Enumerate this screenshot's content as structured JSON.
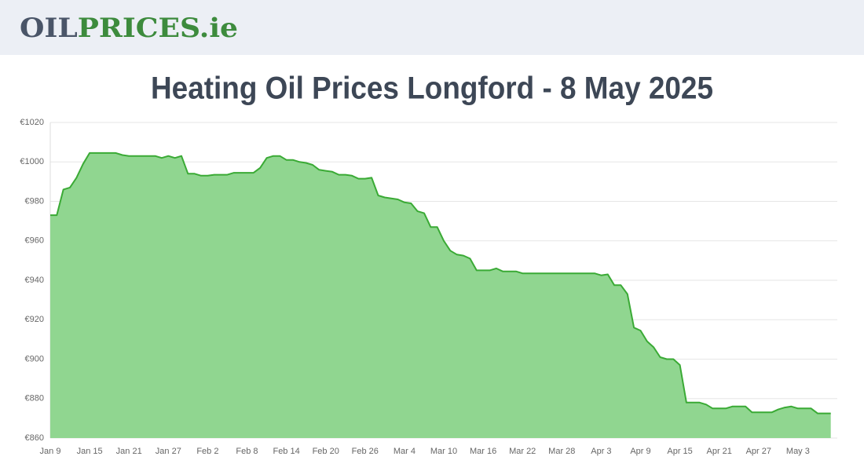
{
  "header": {
    "logo": {
      "main": "OIL",
      "highlight": "PRICES",
      "suffix": ".ie"
    }
  },
  "chart_data": {
    "type": "area",
    "title": "Heating Oil Prices Longford - 8 May 2025",
    "color": "#3aaa35",
    "fill": "#90d690",
    "grid": true,
    "categories": [
      "Jan 9",
      null,
      null,
      null,
      null,
      null,
      "Jan 15",
      null,
      null,
      null,
      null,
      null,
      "Jan 21",
      null,
      null,
      null,
      null,
      null,
      "Jan 27",
      null,
      null,
      null,
      null,
      null,
      "Feb 2",
      null,
      null,
      null,
      null,
      null,
      "Feb 8",
      null,
      null,
      null,
      null,
      null,
      "Feb 14",
      null,
      null,
      null,
      null,
      null,
      "Feb 20",
      null,
      null,
      null,
      null,
      null,
      "Feb 26",
      null,
      null,
      null,
      null,
      null,
      "Mar 4",
      null,
      null,
      null,
      null,
      null,
      "Mar 10",
      null,
      null,
      null,
      null,
      null,
      "Mar 16",
      null,
      null,
      null,
      null,
      null,
      "Mar 22",
      null,
      null,
      null,
      null,
      null,
      "Mar 28",
      null,
      null,
      null,
      null,
      null,
      "Apr 3",
      null,
      null,
      null,
      null,
      null,
      "Apr 9",
      null,
      null,
      null,
      null,
      null,
      "Apr 15",
      null,
      null,
      null,
      null,
      null,
      "Apr 21",
      null,
      null,
      null,
      null,
      null,
      "Apr 27",
      null,
      null,
      null,
      null,
      null,
      "May 3",
      null,
      null,
      null,
      null,
      null
    ],
    "values": [
      973,
      973,
      986,
      987,
      992,
      999,
      1004.5,
      1004.5,
      1004.5,
      1004.5,
      1004.5,
      1003.5,
      1003,
      1003,
      1003,
      1003,
      1003,
      1002,
      1003,
      1002,
      1003,
      994,
      994,
      993,
      993,
      993.5,
      993.5,
      993.5,
      994.5,
      994.5,
      994.5,
      994.5,
      997,
      1002,
      1003,
      1003,
      1001,
      1001,
      1000,
      999.5,
      998.5,
      996,
      995.5,
      995,
      993.5,
      993.5,
      993,
      991.5,
      991.5,
      992,
      983,
      982,
      981.5,
      981,
      979.5,
      979,
      975,
      974,
      967,
      967,
      960,
      955,
      953,
      952.5,
      951,
      945,
      945,
      945,
      946,
      944.5,
      944.5,
      944.5,
      943.5,
      943.5,
      943.5,
      943.5,
      943.5,
      943.5,
      943.5,
      943.5,
      943.5,
      943.5,
      943.5,
      943.5,
      942.5,
      943,
      937.5,
      937.5,
      933,
      916,
      914.5,
      909,
      906,
      901,
      900,
      900,
      897,
      878,
      878,
      878,
      877,
      875,
      875,
      875,
      876,
      876,
      876,
      873,
      873,
      873,
      873,
      874.5,
      875.5,
      876,
      875,
      875,
      875,
      872.5,
      872.5,
      872.5
    ],
    "ylim": [
      860,
      1020
    ],
    "yticks": [
      {
        "value": 860,
        "label": "€860"
      },
      {
        "value": 880,
        "label": "€880"
      },
      {
        "value": 900,
        "label": "€900"
      },
      {
        "value": 920,
        "label": "€920"
      },
      {
        "value": 940,
        "label": "€940"
      },
      {
        "value": 960,
        "label": "€960"
      },
      {
        "value": 980,
        "label": "€980"
      },
      {
        "value": 1000,
        "label": "€1000"
      },
      {
        "value": 1020,
        "label": "€1020"
      }
    ]
  }
}
